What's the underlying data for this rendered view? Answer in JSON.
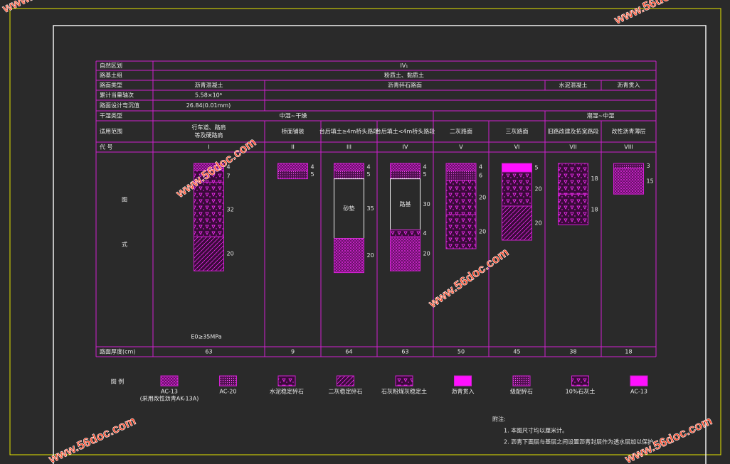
{
  "watermarks": [
    "www.56doc.com",
    "www.56doc.com",
    "www.56doc.com",
    "www.56doc.com",
    "www.56doc.com",
    "www.56doc.com"
  ],
  "table": {
    "row_labels": [
      "自然区划",
      "路基土组",
      "路面类型",
      "累计当量轴次",
      "路面设计弯沉值",
      "干湿类型",
      "适用范围",
      "代 号",
      "图",
      "式",
      "路面厚度(cm)"
    ],
    "region": "IV₁",
    "soil": "粉质土、黏质土",
    "pavement_types": [
      "沥青混凝土",
      "沥青碎石路面",
      "水泥混凝土",
      "沥青贯入"
    ],
    "axle_load": "5.58×10⁶",
    "deflection": "26.84(0.01mm)",
    "moisture": [
      "中湿~干燥",
      "潮湿~中湿"
    ],
    "subgrade_modulus": "E0≥35MPa",
    "columns": [
      {
        "scope": [
          "行车道、路肩",
          "等及硬路肩"
        ],
        "code": "I",
        "total": 63,
        "layers": [
          {
            "thickness": 4
          },
          {
            "thickness": 7
          },
          {
            "thickness": 32
          },
          {
            "thickness": 20
          }
        ]
      },
      {
        "scope": [
          "桥面铺装"
        ],
        "code": "II",
        "total": 9,
        "layers": [
          {
            "thickness": 4
          },
          {
            "thickness": 5
          }
        ]
      },
      {
        "scope": [
          "台后填土≥4m桥头路段"
        ],
        "code": "III",
        "total": 64,
        "layers": [
          {
            "thickness": 4
          },
          {
            "thickness": 5
          },
          {
            "thickness": 35,
            "label": "砂垫"
          },
          {
            "thickness": 20
          }
        ]
      },
      {
        "scope": [
          "台后填土<4m桥头路段"
        ],
        "code": "IV",
        "total": 63,
        "layers": [
          {
            "thickness": 4
          },
          {
            "thickness": 5
          },
          {
            "thickness": 30,
            "label": "路基"
          },
          {
            "thickness": 4
          },
          {
            "thickness": 20
          }
        ]
      },
      {
        "scope": [
          "二灰路面"
        ],
        "code": "V",
        "total": 50,
        "layers": [
          {
            "thickness": 4
          },
          {
            "thickness": 6
          },
          {
            "thickness": 20
          },
          {
            "thickness": 20
          }
        ]
      },
      {
        "scope": [
          "三灰路面"
        ],
        "code": "VI",
        "total": 45,
        "layers": [
          {
            "thickness": 5
          },
          {
            "thickness": 20
          },
          {
            "thickness": 20
          }
        ]
      },
      {
        "scope": [
          "旧路改建及拓宽路段"
        ],
        "code": "VII",
        "total": 38,
        "layers": [
          {
            "thickness": 18
          },
          {
            "thickness": 18
          }
        ]
      },
      {
        "scope": [
          "改性沥青薄层"
        ],
        "code": "VIII",
        "total": 18,
        "layers": [
          {
            "thickness": 3
          },
          {
            "thickness": 15
          }
        ]
      }
    ]
  },
  "legend": {
    "title": "图 例",
    "items": [
      {
        "label": "AC-13",
        "sublabel": "(采用改性沥青AK-13A)"
      },
      {
        "label": "AC-20"
      },
      {
        "label": "水泥稳定碎石"
      },
      {
        "label": "二灰稳定碎石"
      },
      {
        "label": "石灰粉煤灰稳定土"
      },
      {
        "label": "沥青贯入"
      },
      {
        "label": "级配碎石"
      },
      {
        "label": "10%石灰土"
      },
      {
        "label": "AC-13"
      }
    ]
  },
  "notes": {
    "title": "附注:",
    "items": [
      "1. 本图尺寸均以厘米计。",
      "2. 沥青下面层与基层之间设置沥青封层作为透水层加以保护。"
    ]
  }
}
